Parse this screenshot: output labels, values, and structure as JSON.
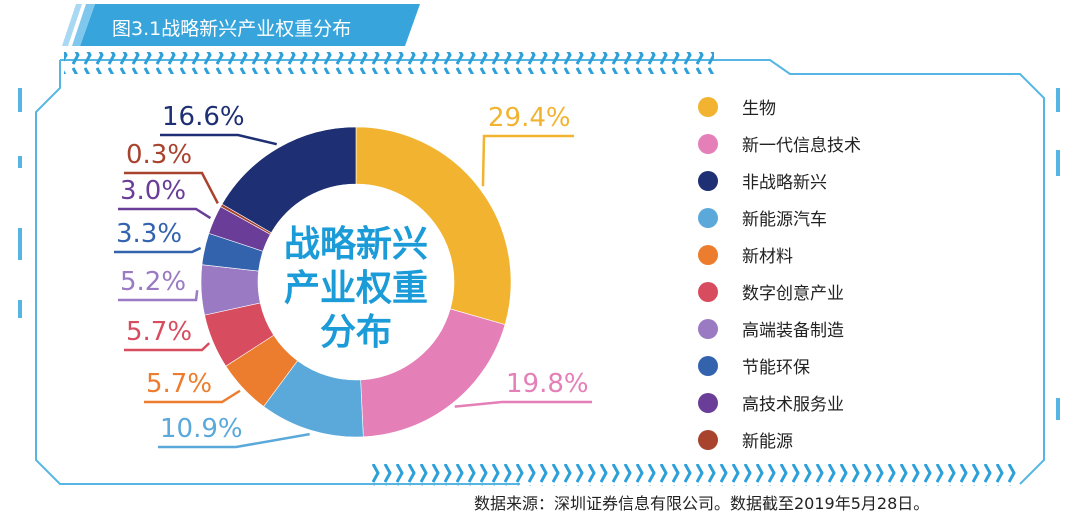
{
  "title": "图3.1战略新兴产业权重分布",
  "center_label": [
    "战略新兴",
    "产业权重",
    "分布"
  ],
  "source": "数据来源：深圳证券信息有限公司。数据截至2019年5月28日。",
  "colors": {
    "frame": "#55b6e4",
    "title_band": "#37a5dc",
    "center_text": "#1b9bd7",
    "hatch": "#2d9fd9"
  },
  "chart_data": {
    "type": "pie",
    "style": "donut",
    "title": "图3.1战略新兴产业权重分布",
    "legend_position": "right",
    "slices": [
      {
        "name": "生物",
        "value": 29.4,
        "label": "29.4%",
        "color": "#f2b330"
      },
      {
        "name": "新一代信息技术",
        "value": 19.8,
        "label": "19.8%",
        "color": "#e57fb7"
      },
      {
        "name": "新能源汽车",
        "value": 10.9,
        "label": "10.9%",
        "color": "#5aa9da"
      },
      {
        "name": "新材料",
        "value": 5.7,
        "label": "5.7%",
        "color": "#ec7d2e"
      },
      {
        "name": "数字创意产业",
        "value": 5.7,
        "label": "5.7%",
        "color": "#d84c5f"
      },
      {
        "name": "高端装备制造",
        "value": 5.2,
        "label": "5.2%",
        "color": "#9a7ac2"
      },
      {
        "name": "节能环保",
        "value": 3.3,
        "label": "3.3%",
        "color": "#3463ae"
      },
      {
        "name": "高技术服务业",
        "value": 3.0,
        "label": "3.0%",
        "color": "#6a3d98"
      },
      {
        "name": "新能源",
        "value": 0.3,
        "label": "0.3%",
        "color": "#a8432e"
      },
      {
        "name": "非战略新兴",
        "value": 16.6,
        "label": "16.6%",
        "color": "#1e2f73"
      }
    ],
    "legend": [
      "生物",
      "新一代信息技术",
      "非战略新兴",
      "新能源汽车",
      "新材料",
      "数字创意产业",
      "高端装备制造",
      "节能环保",
      "高技术服务业",
      "新能源"
    ]
  }
}
